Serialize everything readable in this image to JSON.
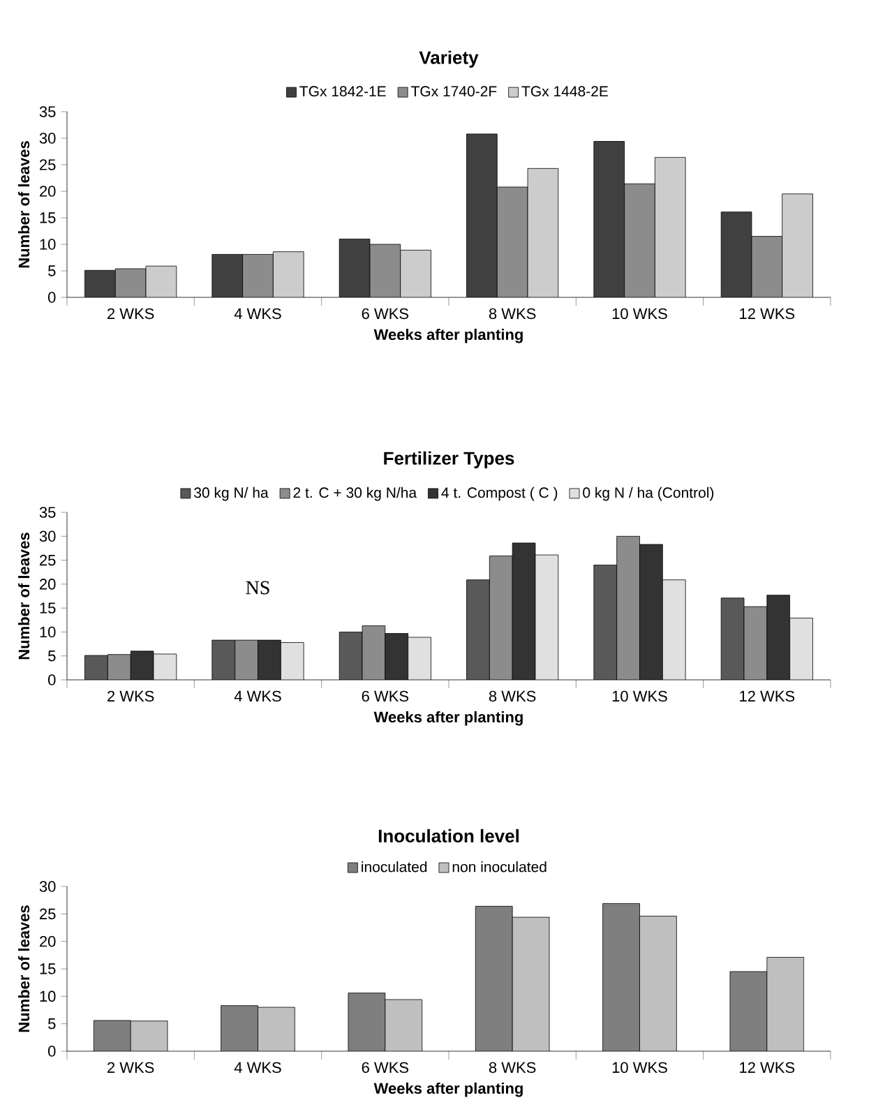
{
  "chart_data": [
    {
      "type": "bar",
      "title": "Variety",
      "xlabel": "Weeks after planting",
      "ylabel": "Number of leaves",
      "categories": [
        "2 WKS",
        "4 WKS",
        "6 WKS",
        "8 WKS",
        "10 WKS",
        "12 WKS"
      ],
      "series": [
        {
          "name": "TGx 1842-1E",
          "color": "#404040",
          "values": [
            5.1,
            8.1,
            11,
            30.8,
            29.4,
            16.1
          ]
        },
        {
          "name": "TGx 1740-2F",
          "color": "#8c8c8c",
          "values": [
            5.4,
            8.1,
            10,
            20.8,
            21.4,
            11.5
          ]
        },
        {
          "name": "TGx 1448-2E",
          "color": "#cccccc",
          "values": [
            5.9,
            8.6,
            8.9,
            24.3,
            26.4,
            19.5
          ]
        }
      ],
      "ylim": [
        0,
        35
      ],
      "yticks": [
        0,
        5,
        10,
        15,
        20,
        25,
        30,
        35
      ],
      "legend": "top"
    },
    {
      "type": "bar",
      "title": "Fertilizer Types",
      "xlabel": "Weeks after planting",
      "ylabel": "Number of leaves",
      "categories": [
        "2 WKS",
        "4 WKS",
        "6 WKS",
        "8 WKS",
        "10 WKS",
        "12 WKS"
      ],
      "series": [
        {
          "name": "30 kg N/ ha",
          "color": "#595959",
          "values": [
            5.1,
            8.3,
            10,
            20.9,
            24,
            17.1
          ]
        },
        {
          "name": "2 t. C + 30 kg N/ha",
          "color": "#8c8c8c",
          "values": [
            5.3,
            8.3,
            11.3,
            25.9,
            30,
            15.3
          ]
        },
        {
          "name": "4 t. Compost ( C )",
          "color": "#333333",
          "values": [
            6.0,
            8.3,
            9.7,
            28.6,
            28.3,
            17.7
          ]
        },
        {
          "name": "0 kg N / ha (Control)",
          "color": "#e0e0e0",
          "values": [
            5.4,
            7.8,
            8.9,
            26.1,
            20.9,
            12.9
          ]
        }
      ],
      "annotations": [
        "NS"
      ],
      "ylim": [
        0,
        35
      ],
      "yticks": [
        0,
        5,
        10,
        15,
        20,
        25,
        30,
        35
      ],
      "legend": "top"
    },
    {
      "type": "bar",
      "title": "Inoculation level",
      "xlabel": "Weeks after planting",
      "ylabel": "Number of leaves",
      "categories": [
        "2 WKS",
        "4 WKS",
        "6 WKS",
        "8 WKS",
        "10 WKS",
        "12 WKS"
      ],
      "series": [
        {
          "name": "inoculated",
          "color": "#7f7f7f",
          "values": [
            5.6,
            8.3,
            10.6,
            26.4,
            26.9,
            14.5
          ]
        },
        {
          "name": "non inoculated",
          "color": "#bfbfbf",
          "values": [
            5.5,
            8.0,
            9.4,
            24.4,
            24.6,
            17.1
          ]
        }
      ],
      "ylim": [
        0,
        30
      ],
      "yticks": [
        0,
        5,
        10,
        15,
        20,
        25,
        30
      ],
      "legend": "top"
    }
  ]
}
